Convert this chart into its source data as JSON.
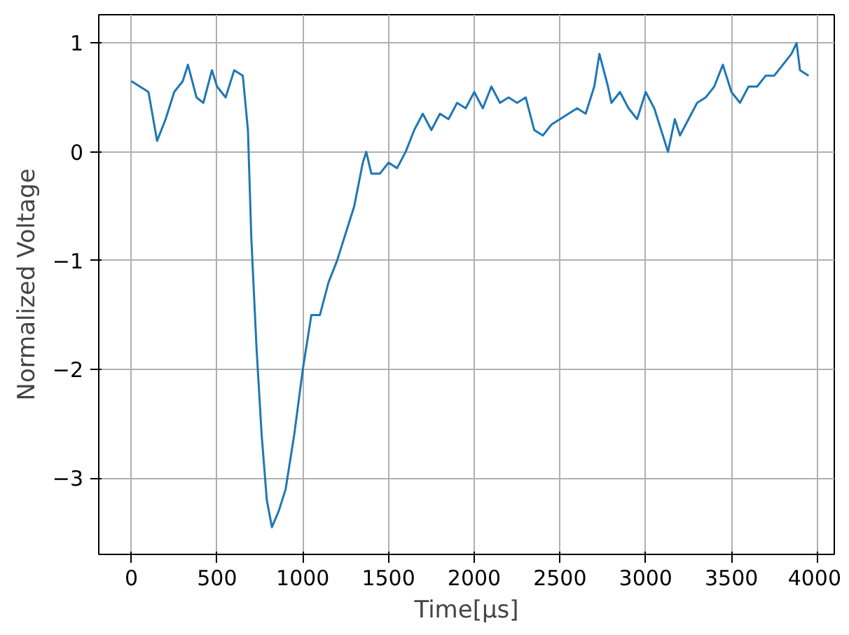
{
  "chart_data": {
    "type": "line",
    "xlabel": "Time[μs]",
    "ylabel": "Normalized Voltage",
    "xlim": [
      -190,
      4100
    ],
    "ylim": [
      -3.7,
      1.26
    ],
    "xticks": [
      0,
      500,
      1000,
      1500,
      2000,
      2500,
      3000,
      3500,
      4000
    ],
    "yticks": [
      {
        "value": -3,
        "label": "−3"
      },
      {
        "value": -2,
        "label": "−2"
      },
      {
        "value": -1,
        "label": "−1"
      },
      0,
      1
    ],
    "grid": true,
    "line_style": "solid",
    "marker": "none",
    "series": [
      {
        "color": "#1f77b4",
        "x": [
          0,
          50,
          100,
          150,
          200,
          250,
          300,
          330,
          380,
          420,
          470,
          500,
          550,
          600,
          650,
          680,
          700,
          730,
          760,
          790,
          820,
          860,
          900,
          950,
          1000,
          1050,
          1100,
          1150,
          1200,
          1250,
          1300,
          1350,
          1370,
          1400,
          1450,
          1500,
          1550,
          1600,
          1650,
          1700,
          1750,
          1800,
          1850,
          1900,
          1950,
          2000,
          2050,
          2100,
          2150,
          2200,
          2250,
          2300,
          2350,
          2400,
          2450,
          2500,
          2550,
          2600,
          2650,
          2700,
          2730,
          2780,
          2800,
          2850,
          2900,
          2950,
          3000,
          3050,
          3100,
          3130,
          3170,
          3200,
          3250,
          3300,
          3350,
          3400,
          3450,
          3500,
          3550,
          3600,
          3650,
          3700,
          3750,
          3800,
          3850,
          3880,
          3900,
          3950
        ],
        "values": [
          0.65,
          0.6,
          0.55,
          0.1,
          0.3,
          0.55,
          0.65,
          0.8,
          0.5,
          0.45,
          0.75,
          0.6,
          0.5,
          0.75,
          0.7,
          0.2,
          -0.8,
          -1.8,
          -2.6,
          -3.2,
          -3.45,
          -3.3,
          -3.1,
          -2.6,
          -2.0,
          -1.5,
          -1.5,
          -1.2,
          -1.0,
          -0.75,
          -0.5,
          -0.1,
          0.0,
          -0.2,
          -0.2,
          -0.1,
          -0.15,
          0.0,
          0.2,
          0.35,
          0.2,
          0.35,
          0.3,
          0.45,
          0.4,
          0.55,
          0.4,
          0.6,
          0.45,
          0.5,
          0.45,
          0.5,
          0.2,
          0.15,
          0.25,
          0.3,
          0.35,
          0.4,
          0.35,
          0.6,
          0.9,
          0.6,
          0.45,
          0.55,
          0.4,
          0.3,
          0.55,
          0.4,
          0.15,
          0.0,
          0.3,
          0.15,
          0.3,
          0.45,
          0.5,
          0.6,
          0.8,
          0.55,
          0.45,
          0.6,
          0.6,
          0.7,
          0.7,
          0.8,
          0.9,
          1.0,
          0.75,
          0.7
        ]
      }
    ]
  }
}
